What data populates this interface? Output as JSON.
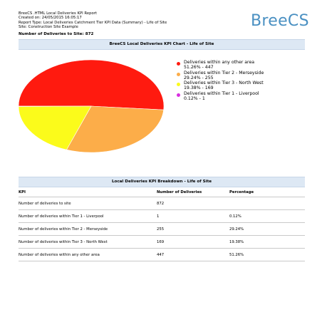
{
  "report": {
    "title": "BreeCS .HTML Local Deliveries KPI Report",
    "created": "Created on: 24/05/2015 16:05:17",
    "type": "Report Type: Local Deliveries Catchment Tier KPI Data (Summary) - Life of Site",
    "site": "Site: Construction Site Example"
  },
  "logo": "BreeCS",
  "count_line": "Number of Deliveries to Site: 872",
  "chart_section_title": "BreeCS Local Deliveries KPI Chart - Life of Site",
  "table_section_title": "Local Deliveries KPI Breakdown - Life of Site",
  "chart_data": {
    "type": "pie",
    "legend_position": "right",
    "slices": [
      {
        "label": "Deliveries within any other area",
        "detail": "51.26% - 447",
        "value": 447,
        "color": "#ff1a0f"
      },
      {
        "label": "Deliveries within Tier 2 - Merseyside",
        "detail": "29.24% - 255",
        "value": 255,
        "color": "#fcad49"
      },
      {
        "label": "Deliveries within Tier 3 - North West",
        "detail": "19.38% - 169",
        "value": 169,
        "color": "#fbfb1b"
      },
      {
        "label": "Deliveries within Tier 1 - Liverpool",
        "detail": "0.12% - 1",
        "value": 1,
        "color": "#d92ee0"
      }
    ]
  },
  "table": {
    "headers": [
      "KPI",
      "Number of Deliveries",
      "Percentage"
    ],
    "rows": [
      [
        "Number of deliveries to site",
        "872",
        ""
      ],
      [
        "Number of deliveries within Tier 1 - Liverpool",
        "1",
        "0.12%"
      ],
      [
        "Number of deliveries within Tier 2 - Merseyside",
        "255",
        "29.24%"
      ],
      [
        "Number of deliveries within Tier 3 - North West",
        "169",
        "19.38%"
      ],
      [
        "Number of deliveries within any other area",
        "447",
        "51.26%"
      ]
    ]
  }
}
